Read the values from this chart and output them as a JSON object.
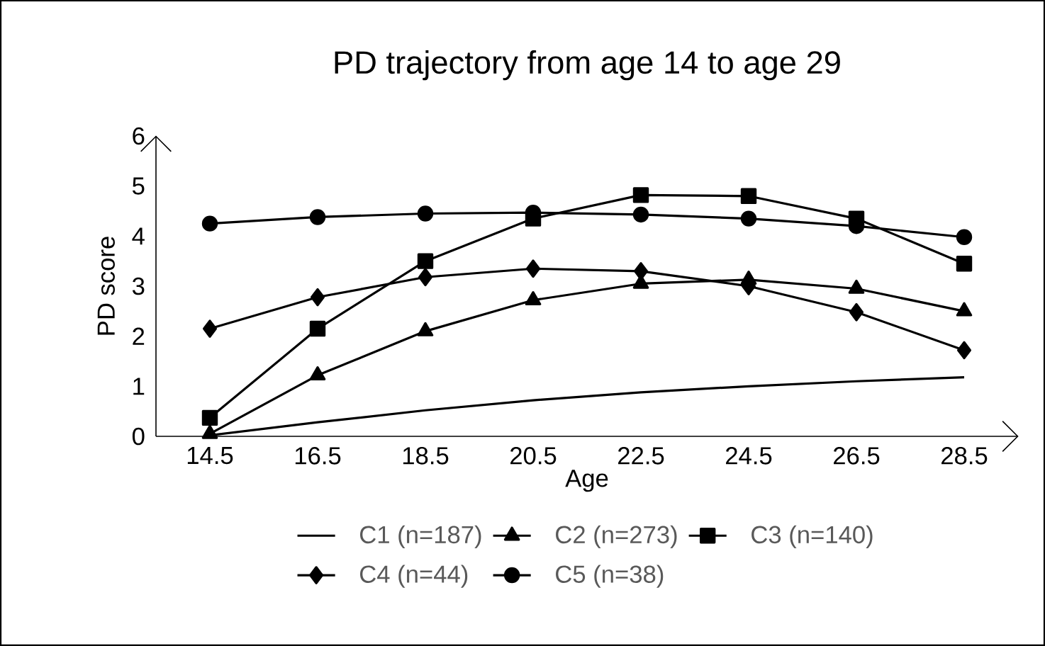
{
  "chart_data": {
    "type": "line",
    "title": "PD trajectory from age 14 to age 29",
    "xlabel": "Age",
    "ylabel": "PD score",
    "categories": [
      "14.5",
      "16.5",
      "18.5",
      "20.5",
      "22.5",
      "24.5",
      "26.5",
      "28.5"
    ],
    "ylim": [
      0,
      6
    ],
    "yticks": [
      0,
      1,
      2,
      3,
      4,
      5,
      6
    ],
    "grid": false,
    "legend": "bottom",
    "line_style": "solid",
    "series": [
      {
        "name": "C1 (n=187)",
        "color": "#000000",
        "marker": "none",
        "values": [
          0.02,
          0.28,
          0.52,
          0.72,
          0.88,
          1.0,
          1.1,
          1.18
        ]
      },
      {
        "name": "C2 (n=273)",
        "color": "#000000",
        "marker": "triangle",
        "values": [
          0.05,
          1.22,
          2.1,
          2.72,
          3.05,
          3.13,
          2.95,
          2.5
        ]
      },
      {
        "name": "C3 (n=140)",
        "color": "#000000",
        "marker": "square",
        "values": [
          0.37,
          2.15,
          3.5,
          4.35,
          4.82,
          4.8,
          4.35,
          3.45
        ]
      },
      {
        "name": "C4 (n=44)",
        "color": "#000000",
        "marker": "diamond",
        "values": [
          2.15,
          2.78,
          3.18,
          3.35,
          3.3,
          3.0,
          2.48,
          1.72
        ]
      },
      {
        "name": "C5 (n=38)",
        "color": "#000000",
        "marker": "circle",
        "values": [
          4.25,
          4.38,
          4.45,
          4.47,
          4.43,
          4.35,
          4.2,
          3.98
        ]
      }
    ]
  }
}
